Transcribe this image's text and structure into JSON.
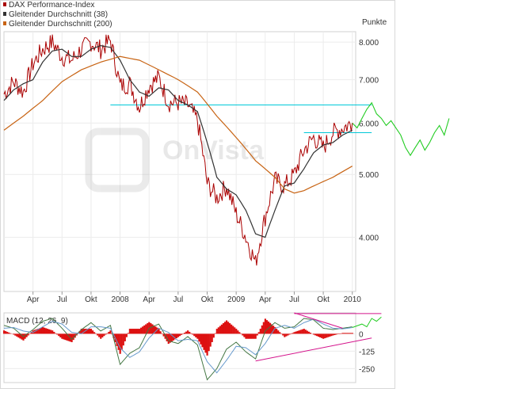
{
  "legend": [
    {
      "label": "DAX Performance-Index",
      "color": "#aa0000"
    },
    {
      "label": "Gleitender Durchschnitt (38)",
      "color": "#333333"
    },
    {
      "label": "Gleitender Durchschnitt (200)",
      "color": "#c86414"
    }
  ],
  "watermark": "OnVista",
  "chart_data": [
    {
      "type": "line",
      "title": "",
      "y_unit_label": "Punkte",
      "y_scale": "log",
      "ylim": [
        3300,
        8300
      ],
      "y_ticks": [
        {
          "value": 8000,
          "label": "8.000"
        },
        {
          "value": 7000,
          "label": "7.000"
        },
        {
          "value": 6000,
          "label": "6.000"
        },
        {
          "value": 5000,
          "label": "5.000"
        },
        {
          "value": 4000,
          "label": "4.000"
        }
      ],
      "x_range": [
        "2007-01",
        "2010-04"
      ],
      "x_ticks": [
        {
          "t": "2007-04",
          "label": "Apr"
        },
        {
          "t": "2007-07",
          "label": "Jul"
        },
        {
          "t": "2007-10",
          "label": "Okt"
        },
        {
          "t": "2008-01",
          "label": "2008"
        },
        {
          "t": "2008-04",
          "label": "Apr"
        },
        {
          "t": "2008-07",
          "label": "Jul"
        },
        {
          "t": "2008-10",
          "label": "Okt"
        },
        {
          "t": "2009-01",
          "label": "2009"
        },
        {
          "t": "2009-04",
          "label": "Apr"
        },
        {
          "t": "2009-07",
          "label": "Jul"
        },
        {
          "t": "2009-10",
          "label": "Okt"
        },
        {
          "t": "2010-01",
          "label": "2010"
        }
      ],
      "grid": true,
      "series": [
        {
          "name": "DAX Performance-Index",
          "color": "#aa0000",
          "points": [
            [
              "2007-01",
              6650
            ],
            [
              "2007-02",
              6950
            ],
            [
              "2007-03",
              6700
            ],
            [
              "2007-04",
              7400
            ],
            [
              "2007-05",
              7800
            ],
            [
              "2007-06",
              8000
            ],
            [
              "2007-07",
              7600
            ],
            [
              "2007-08",
              7500
            ],
            [
              "2007-09",
              7800
            ],
            [
              "2007-10",
              8000
            ],
            [
              "2007-11",
              7800
            ],
            [
              "2007-12",
              8050
            ],
            [
              "2008-01",
              6850
            ],
            [
              "2008-02",
              6900
            ],
            [
              "2008-03",
              6350
            ],
            [
              "2008-04",
              6850
            ],
            [
              "2008-05",
              7050
            ],
            [
              "2008-06",
              6450
            ],
            [
              "2008-07",
              6450
            ],
            [
              "2008-08",
              6400
            ],
            [
              "2008-09",
              6050
            ],
            [
              "2008-10",
              4850
            ],
            [
              "2008-11",
              4600
            ],
            [
              "2008-12",
              4800
            ],
            [
              "2009-01",
              4350
            ],
            [
              "2009-02",
              4000
            ],
            [
              "2009-03",
              3650
            ],
            [
              "2009-04",
              4300
            ],
            [
              "2009-05",
              4900
            ],
            [
              "2009-06",
              4800
            ],
            [
              "2009-07",
              5000
            ],
            [
              "2009-08",
              5450
            ],
            [
              "2009-09",
              5700
            ],
            [
              "2009-10",
              5500
            ],
            [
              "2009-11",
              5800
            ],
            [
              "2009-12",
              5900
            ],
            [
              "2010-01",
              6000
            ]
          ]
        },
        {
          "name": "Gleitender Durchschnitt (38)",
          "color": "#333333",
          "points": [
            [
              "2007-01",
              6500
            ],
            [
              "2007-02",
              6750
            ],
            [
              "2007-03",
              6900
            ],
            [
              "2007-04",
              7000
            ],
            [
              "2007-05",
              7450
            ],
            [
              "2007-06",
              7750
            ],
            [
              "2007-07",
              7800
            ],
            [
              "2007-08",
              7600
            ],
            [
              "2007-09",
              7600
            ],
            [
              "2007-10",
              7800
            ],
            [
              "2007-11",
              7900
            ],
            [
              "2007-12",
              7850
            ],
            [
              "2008-01",
              7500
            ],
            [
              "2008-02",
              7000
            ],
            [
              "2008-03",
              6700
            ],
            [
              "2008-04",
              6600
            ],
            [
              "2008-05",
              6800
            ],
            [
              "2008-06",
              6750
            ],
            [
              "2008-07",
              6500
            ],
            [
              "2008-08",
              6400
            ],
            [
              "2008-09",
              6250
            ],
            [
              "2008-10",
              5600
            ],
            [
              "2008-11",
              4950
            ],
            [
              "2008-12",
              4750
            ],
            [
              "2009-01",
              4650
            ],
            [
              "2009-02",
              4400
            ],
            [
              "2009-03",
              4050
            ],
            [
              "2009-04",
              4000
            ],
            [
              "2009-05",
              4400
            ],
            [
              "2009-06",
              4800
            ],
            [
              "2009-07",
              4850
            ],
            [
              "2009-08",
              5100
            ],
            [
              "2009-09",
              5400
            ],
            [
              "2009-10",
              5550
            ],
            [
              "2009-11",
              5600
            ],
            [
              "2009-12",
              5750
            ],
            [
              "2010-01",
              5850
            ]
          ]
        },
        {
          "name": "Gleitender Durchschnitt (200)",
          "color": "#c86414",
          "points": [
            [
              "2007-01",
              5850
            ],
            [
              "2007-03",
              6150
            ],
            [
              "2007-05",
              6500
            ],
            [
              "2007-07",
              6950
            ],
            [
              "2007-09",
              7250
            ],
            [
              "2007-11",
              7450
            ],
            [
              "2008-01",
              7600
            ],
            [
              "2008-03",
              7500
            ],
            [
              "2008-05",
              7250
            ],
            [
              "2008-07",
              7000
            ],
            [
              "2008-09",
              6700
            ],
            [
              "2008-11",
              6150
            ],
            [
              "2009-01",
              5700
            ],
            [
              "2009-03",
              5250
            ],
            [
              "2009-05",
              4950
            ],
            [
              "2009-06",
              4750
            ],
            [
              "2009-07",
              4680
            ],
            [
              "2009-08",
              4720
            ],
            [
              "2009-09",
              4800
            ],
            [
              "2009-11",
              4950
            ],
            [
              "2010-01",
              5150
            ]
          ]
        }
      ],
      "annotations": [
        {
          "kind": "hline",
          "value": 6400,
          "from": "2007-12",
          "to": "2010-03",
          "color": "#00c8d8"
        },
        {
          "kind": "hline",
          "value": 5800,
          "from": "2009-08",
          "to": "2010-03",
          "color": "#00c8d8"
        },
        {
          "kind": "projection",
          "color": "#22cc22",
          "points": [
            [
              "2010-01",
              6000
            ],
            [
              "2010-01",
              5900
            ],
            [
              "2010-02",
              6100
            ],
            [
              "2010-02",
              6300
            ],
            [
              "2010-03",
              6450
            ],
            [
              "2010-03",
              6200
            ],
            [
              "2010-04",
              6100
            ],
            [
              "2010-04",
              5950
            ],
            [
              "2010-05",
              6050
            ],
            [
              "2010-05",
              5900
            ],
            [
              "2010-06",
              5750
            ],
            [
              "2010-06",
              5500
            ],
            [
              "2010-07",
              5350
            ],
            [
              "2010-07",
              5500
            ],
            [
              "2010-08",
              5650
            ],
            [
              "2010-08",
              5450
            ],
            [
              "2010-09",
              5600
            ],
            [
              "2010-09",
              5800
            ],
            [
              "2010-10",
              5950
            ],
            [
              "2010-10",
              5750
            ],
            [
              "2010-11",
              6100
            ]
          ]
        }
      ]
    },
    {
      "type": "line",
      "title": "MACD (12, 26, 9)",
      "ylim": [
        -350,
        150
      ],
      "y_ticks": [
        {
          "value": 0,
          "label": "0"
        },
        {
          "value": -125,
          "label": "-125"
        },
        {
          "value": -250,
          "label": "-250"
        }
      ],
      "grid": true,
      "series": [
        {
          "name": "MACD",
          "color": "#447744",
          "points": [
            [
              "2007-01",
              60
            ],
            [
              "2007-02",
              40
            ],
            [
              "2007-03",
              -20
            ],
            [
              "2007-04",
              30
            ],
            [
              "2007-05",
              90
            ],
            [
              "2007-06",
              110
            ],
            [
              "2007-07",
              40
            ],
            [
              "2007-08",
              -40
            ],
            [
              "2007-09",
              30
            ],
            [
              "2007-10",
              80
            ],
            [
              "2007-11",
              20
            ],
            [
              "2007-12",
              60
            ],
            [
              "2008-01",
              -220
            ],
            [
              "2008-02",
              -140
            ],
            [
              "2008-03",
              -100
            ],
            [
              "2008-04",
              40
            ],
            [
              "2008-05",
              70
            ],
            [
              "2008-06",
              -50
            ],
            [
              "2008-07",
              -70
            ],
            [
              "2008-08",
              -20
            ],
            [
              "2008-09",
              -80
            ],
            [
              "2008-10",
              -330
            ],
            [
              "2008-11",
              -250
            ],
            [
              "2008-12",
              -110
            ],
            [
              "2009-01",
              -60
            ],
            [
              "2009-02",
              -130
            ],
            [
              "2009-03",
              -180
            ],
            [
              "2009-04",
              20
            ],
            [
              "2009-05",
              80
            ],
            [
              "2009-06",
              40
            ],
            [
              "2009-07",
              50
            ],
            [
              "2009-08",
              110
            ],
            [
              "2009-09",
              100
            ],
            [
              "2009-10",
              40
            ],
            [
              "2009-11",
              30
            ],
            [
              "2009-12",
              40
            ],
            [
              "2010-01",
              50
            ]
          ]
        },
        {
          "name": "Signal",
          "color": "#6699cc",
          "points": [
            [
              "2007-01",
              40
            ],
            [
              "2007-02",
              45
            ],
            [
              "2007-03",
              20
            ],
            [
              "2007-04",
              10
            ],
            [
              "2007-05",
              50
            ],
            [
              "2007-06",
              90
            ],
            [
              "2007-07",
              70
            ],
            [
              "2007-08",
              10
            ],
            [
              "2007-09",
              0
            ],
            [
              "2007-10",
              50
            ],
            [
              "2007-11",
              50
            ],
            [
              "2007-12",
              40
            ],
            [
              "2008-01",
              -100
            ],
            [
              "2008-02",
              -170
            ],
            [
              "2008-03",
              -130
            ],
            [
              "2008-04",
              -30
            ],
            [
              "2008-05",
              40
            ],
            [
              "2008-06",
              10
            ],
            [
              "2008-07",
              -50
            ],
            [
              "2008-08",
              -40
            ],
            [
              "2008-09",
              -50
            ],
            [
              "2008-10",
              -200
            ],
            [
              "2008-11",
              -280
            ],
            [
              "2008-12",
              -190
            ],
            [
              "2009-01",
              -90
            ],
            [
              "2009-02",
              -100
            ],
            [
              "2009-03",
              -150
            ],
            [
              "2009-04",
              -70
            ],
            [
              "2009-05",
              40
            ],
            [
              "2009-06",
              60
            ],
            [
              "2009-07",
              40
            ],
            [
              "2009-08",
              80
            ],
            [
              "2009-09",
              105
            ],
            [
              "2009-10",
              70
            ],
            [
              "2009-11",
              40
            ],
            [
              "2009-12",
              35
            ],
            [
              "2010-01",
              45
            ]
          ]
        }
      ],
      "annotations": [
        {
          "kind": "line",
          "color": "#d4148c",
          "points": [
            [
              "2009-07",
              145
            ],
            [
              "2010-04",
              145
            ]
          ]
        },
        {
          "kind": "line",
          "color": "#d4148c",
          "points": [
            [
              "2009-07",
              150
            ],
            [
              "2009-12",
              40
            ]
          ]
        },
        {
          "kind": "line",
          "color": "#d4148c",
          "points": [
            [
              "2009-03",
              -195
            ],
            [
              "2010-03",
              -30
            ]
          ]
        },
        {
          "kind": "projection",
          "color": "#22cc22",
          "points": [
            [
              "2010-01",
              45
            ],
            [
              "2010-02",
              70
            ],
            [
              "2010-02",
              50
            ],
            [
              "2010-03",
              110
            ],
            [
              "2010-03",
              90
            ],
            [
              "2010-04",
              120
            ]
          ]
        }
      ]
    }
  ]
}
